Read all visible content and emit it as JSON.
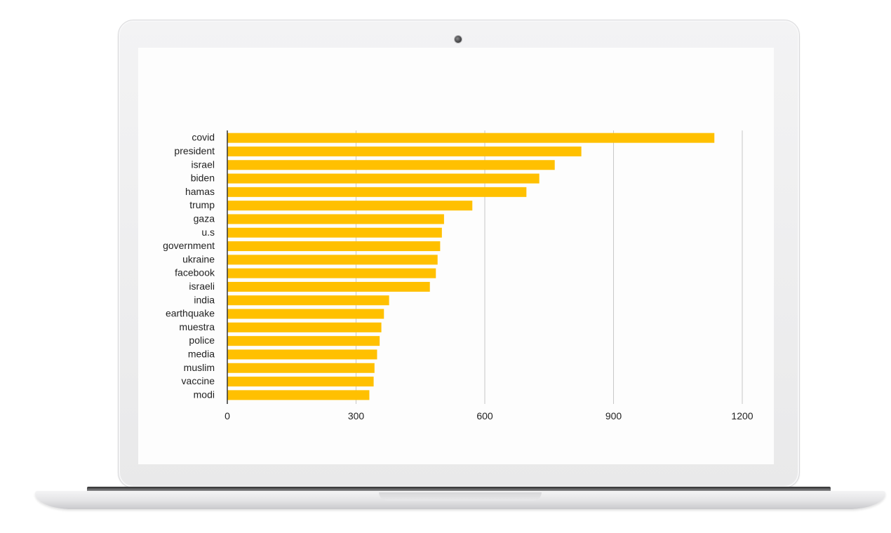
{
  "device": {
    "frame_color": "#ececed",
    "screen_color": "#fdfdfd",
    "camera_icon": "webcam-dot"
  },
  "chart_data": {
    "type": "bar",
    "orientation": "horizontal",
    "title": "",
    "xlabel": "",
    "ylabel": "",
    "categories": [
      "covid",
      "president",
      "israel",
      "biden",
      "hamas",
      "trump",
      "gaza",
      "u.s",
      "government",
      "ukraine",
      "facebook",
      "israeli",
      "india",
      "earthquake",
      "muestra",
      "police",
      "media",
      "muslim",
      "vaccine",
      "modi"
    ],
    "values": [
      1135,
      825,
      763,
      727,
      697,
      571,
      505,
      500,
      496,
      490,
      486,
      472,
      377,
      365,
      359,
      355,
      349,
      343,
      341,
      331
    ],
    "xlim": [
      0,
      1200
    ],
    "xticks": [
      0,
      300,
      600,
      900,
      1200
    ],
    "grid": true,
    "legend": "none",
    "bar_color": "#ffc000",
    "grid_color": "#c8c8c8",
    "axis_color": "#333333"
  }
}
